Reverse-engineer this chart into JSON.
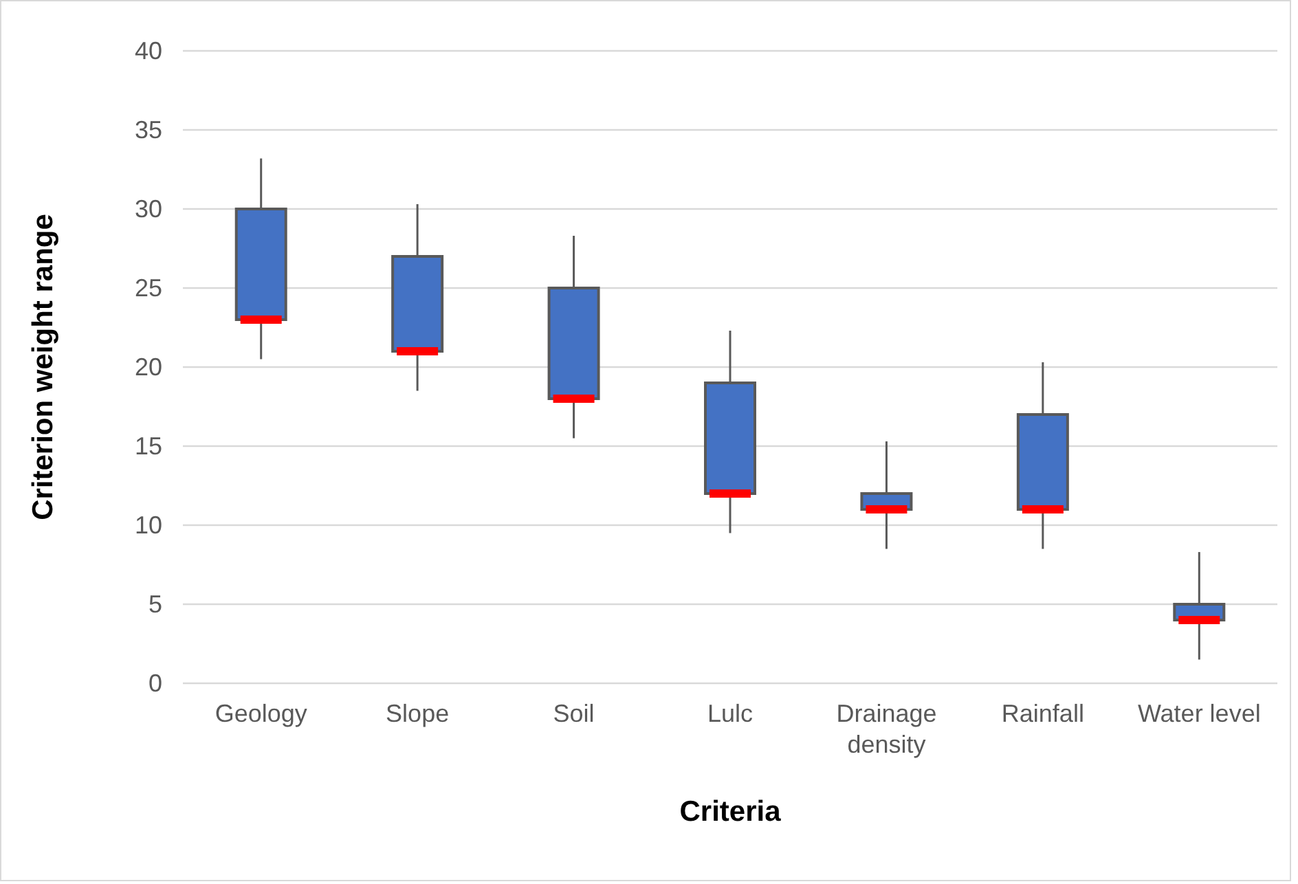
{
  "chart_data": {
    "type": "box",
    "xlabel": "Criteria",
    "ylabel": "Criterion weight range",
    "categories": [
      "Geology",
      "Slope",
      "Soil",
      "Lulc",
      "Drainage density",
      "Rainfall",
      "Water level"
    ],
    "series": [
      {
        "color": "#4472c4",
        "boxes": [
          {
            "low": 20.5,
            "q1": 23,
            "median": 23,
            "q3": 30,
            "high": 33.2
          },
          {
            "low": 18.5,
            "q1": 21,
            "median": 21,
            "q3": 27,
            "high": 30.3
          },
          {
            "low": 15.5,
            "q1": 18,
            "median": 18,
            "q3": 25,
            "high": 28.3
          },
          {
            "low": 9.5,
            "q1": 12,
            "median": 12,
            "q3": 19,
            "high": 22.3
          },
          {
            "low": 8.5,
            "q1": 11,
            "median": 11,
            "q3": 12,
            "high": 15.3
          },
          {
            "low": 8.5,
            "q1": 11,
            "median": 11,
            "q3": 17,
            "high": 20.3
          },
          {
            "low": 1.5,
            "q1": 4,
            "median": 4,
            "q3": 5,
            "high": 8.3
          }
        ]
      }
    ],
    "ylim": [
      0,
      40
    ],
    "yticks": [
      0,
      5,
      10,
      15,
      20,
      25,
      30,
      35,
      40
    ],
    "grid": "y"
  }
}
